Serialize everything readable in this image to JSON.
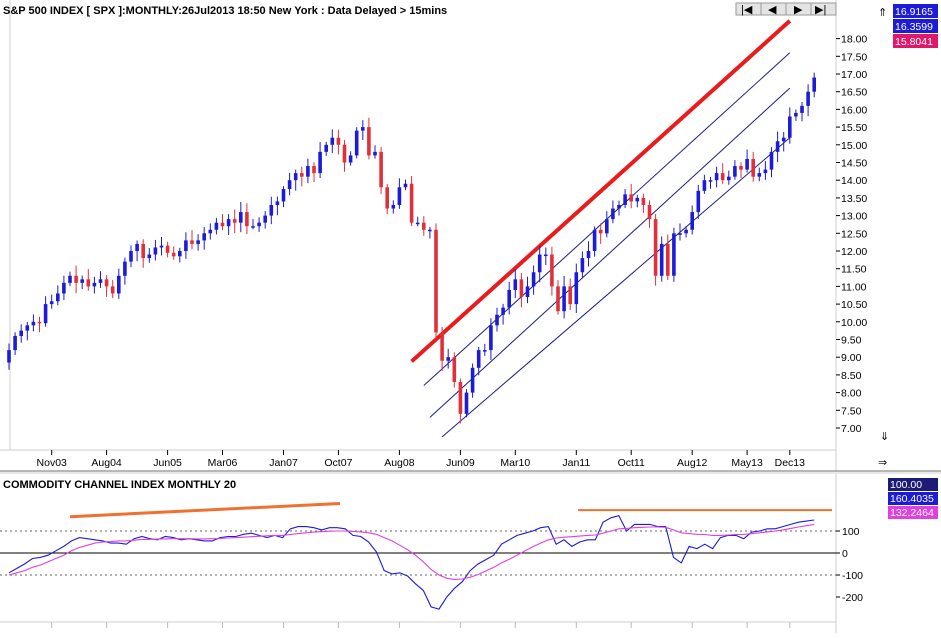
{
  "main_panel": {
    "title": "S&P 500 INDEX [ SPX ]:MONTHLY:26Jul2013 18:50 New York : Data Delayed > 15mins",
    "price_badges": [
      {
        "value": "16.9165",
        "color": "#1c1cd8"
      },
      {
        "value": "16.3599",
        "color": "#1c1cd8"
      },
      {
        "value": "15.8041",
        "color": "#e0186a"
      }
    ],
    "nav": {
      "first": "|◀",
      "prev": "◀",
      "next": "▶",
      "last": "▶|"
    }
  },
  "indicator_panel": {
    "title": "COMMODITY CHANNEL INDEX MONTHLY 20",
    "badges": [
      {
        "value": "100.00",
        "color": "#1c1c78"
      },
      {
        "value": "160.4035",
        "color": "#1c1cd8"
      },
      {
        "value": "132.2464",
        "color": "#e040e0"
      }
    ]
  },
  "chart_data": [
    {
      "type": "candlestick",
      "title": "S&P 500 INDEX [ SPX ]:MONTHLY",
      "x_tick_labels": [
        "Nov03",
        "Aug04",
        "Jun05",
        "Mar06",
        "Jan07",
        "Oct07",
        "Aug08",
        "Jun09",
        "Mar10",
        "Jan11",
        "Oct11",
        "Aug12",
        "May13",
        "Dec13"
      ],
      "y_tick_labels": [
        "7.00",
        "7.50",
        "8.00",
        "8.50",
        "9.00",
        "9.50",
        "10.00",
        "10.50",
        "11.00",
        "11.50",
        "12.00",
        "12.50",
        "13.00",
        "13.50",
        "14.00",
        "14.50",
        "15.00",
        "15.50",
        "16.00",
        "16.50",
        "17.00",
        "17.50",
        "18.00"
      ],
      "ylim": [
        6.5,
        18.5
      ],
      "grid": false,
      "up_color": "#1c1cd8",
      "down_color": "#e0303a",
      "candles": {
        "start": "2003-04",
        "close": [
          9.2,
          9.6,
          9.75,
          9.9,
          10.0,
          9.96,
          10.5,
          10.58,
          10.8,
          11.1,
          11.3,
          11.1,
          11.2,
          11.0,
          11.1,
          11.2,
          11.0,
          10.8,
          11.3,
          11.7,
          12.0,
          12.2,
          11.8,
          11.9,
          12.1,
          12.15,
          11.95,
          11.85,
          12.0,
          12.3,
          12.2,
          12.3,
          12.5,
          12.6,
          12.8,
          12.7,
          12.9,
          12.8,
          13.1,
          12.7,
          12.7,
          12.8,
          13.0,
          13.3,
          13.4,
          13.75,
          14.0,
          14.2,
          14.1,
          14.4,
          14.2,
          14.8,
          15.0,
          15.2,
          15.0,
          14.5,
          14.7,
          15.4,
          15.5,
          14.7,
          14.8,
          13.8,
          13.2,
          13.3,
          13.8,
          13.9,
          12.8,
          12.8,
          12.6,
          12.6,
          9.7,
          8.9,
          9.0,
          8.3,
          7.4,
          8.0,
          8.7,
          9.2,
          9.2,
          9.9,
          10.2,
          10.4,
          10.9,
          11.2,
          10.7,
          11.0,
          11.4,
          11.9,
          11.9,
          11.0,
          10.3,
          11.0,
          10.5,
          11.4,
          11.8,
          12.0,
          12.6,
          12.5,
          12.9,
          13.2,
          13.3,
          13.6,
          13.4,
          13.5,
          13.3,
          12.9,
          11.3,
          12.2,
          11.3,
          12.5,
          12.5,
          12.6,
          13.1,
          13.7,
          14.0,
          14.0,
          14.2,
          14.0,
          14.1,
          14.4,
          14.3,
          14.6,
          14.1,
          14.2,
          14.3,
          14.8,
          15.1,
          15.2,
          15.8,
          15.9,
          16.1,
          16.5,
          16.9
        ]
      },
      "annotations": [
        {
          "label": "red resistance line",
          "x": [
            "2008-10",
            "2013-12"
          ],
          "y": [
            8.88,
            18.5
          ]
        },
        {
          "label": "upper channel line",
          "x": [
            "2008-12",
            "2013-12"
          ],
          "y": [
            8.2,
            17.6
          ]
        },
        {
          "label": "middle channel line",
          "x": [
            "2009-01",
            "2013-12"
          ],
          "y": [
            7.3,
            16.6
          ]
        },
        {
          "label": "lower channel line",
          "x": [
            "2009-03",
            "2013-12"
          ],
          "y": [
            6.75,
            15.2
          ]
        }
      ]
    },
    {
      "type": "line",
      "title": "COMMODITY CHANNEL INDEX MONTHLY 20",
      "y_tick_labels": [
        "100",
        "0",
        "-100",
        "-200"
      ],
      "ylim": [
        -270,
        230
      ],
      "reference_lines": [
        100,
        0,
        -100
      ],
      "series": [
        {
          "color": "#1c1cd8",
          "values": [
            -90,
            -70,
            -50,
            -25,
            -20,
            -10,
            10,
            30,
            55,
            70,
            65,
            60,
            55,
            45,
            45,
            40,
            65,
            75,
            65,
            60,
            75,
            70,
            60,
            65,
            60,
            55,
            55,
            70,
            75,
            75,
            85,
            90,
            80,
            70,
            80,
            70,
            110,
            120,
            120,
            115,
            105,
            115,
            115,
            110,
            80,
            75,
            50,
            5,
            -80,
            -95,
            -90,
            -105,
            -140,
            -170,
            -245,
            -255,
            -200,
            -160,
            -130,
            -80,
            -50,
            -30,
            -10,
            40,
            60,
            80,
            90,
            100,
            115,
            120,
            40,
            60,
            30,
            50,
            60,
            60,
            140,
            160,
            170,
            100,
            130,
            130,
            130,
            120,
            120,
            -20,
            -45,
            30,
            20,
            40,
            20,
            70,
            80,
            80,
            65,
            95,
            100,
            110,
            110,
            120,
            130,
            140,
            145,
            150
          ]
        },
        {
          "color": "#e040e0",
          "values": [
            -100,
            -90,
            -80,
            -65,
            -55,
            -40,
            -25,
            -10,
            10,
            25,
            35,
            45,
            50,
            52,
            55,
            55,
            58,
            62,
            62,
            63,
            64,
            65,
            65,
            65,
            64,
            64,
            65,
            66,
            68,
            70,
            72,
            74,
            76,
            78,
            80,
            80,
            84,
            88,
            92,
            95,
            97,
            99,
            100,
            100,
            98,
            96,
            92,
            85,
            70,
            55,
            35,
            15,
            -10,
            -40,
            -75,
            -100,
            -115,
            -120,
            -118,
            -110,
            -98,
            -82,
            -65,
            -45,
            -28,
            -10,
            10,
            28,
            45,
            60,
            68,
            72,
            74,
            77,
            80,
            82,
            90,
            100,
            110,
            112,
            115,
            117,
            118,
            118,
            117,
            105,
            92,
            88,
            85,
            84,
            80,
            80,
            82,
            84,
            84,
            88,
            92,
            96,
            100,
            105,
            112,
            118,
            124,
            130
          ]
        }
      ],
      "annotations": [
        {
          "label": "orange divergence line left",
          "color": "#f07030",
          "y": [
            165,
            225
          ]
        },
        {
          "label": "orange flat line right",
          "color": "#f07030",
          "y": [
            195,
            195
          ]
        }
      ]
    }
  ]
}
